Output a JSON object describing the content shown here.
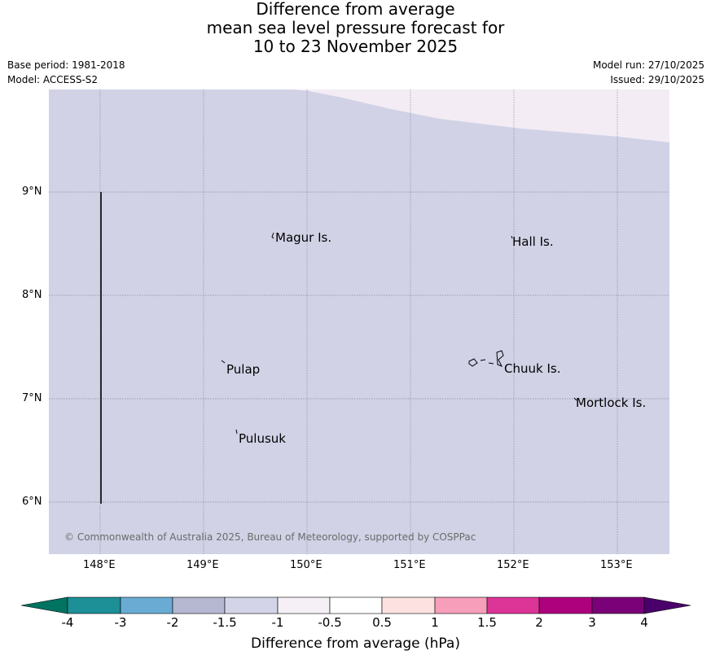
{
  "header": {
    "title_line1": "Difference from average",
    "title_line2": "mean sea level pressure forecast for",
    "title_line3": "10 to 23 November 2025",
    "base_period": "Base period: 1981-2018",
    "model": "Model: ACCESS-S2",
    "model_run": "Model run: 27/10/2025",
    "issued": "Issued: 29/10/2025"
  },
  "map": {
    "lat_labels": [
      "9°N",
      "8°N",
      "7°N",
      "6°N"
    ],
    "lon_labels": [
      "148°E",
      "149°E",
      "150°E",
      "151°E",
      "152°E",
      "153°E"
    ],
    "places": [
      "Magur Is.",
      "Hall Is.",
      "Pulap",
      "Chuuk Is.",
      "Mortlock Is.",
      "Pulusuk"
    ],
    "copyright": "© Commonwealth of Australia 2025, Bureau of Meteorology, supported by COSPPac",
    "colors": {
      "main_fill": "#d1d2e6",
      "upper_fill": "#f3ecf5",
      "grid": "#8a8a9a"
    }
  },
  "colorbar": {
    "title": "Difference from average (hPa)",
    "tick_labels": [
      "-4",
      "-3",
      "-2",
      "-1.5",
      "-1",
      "-0.5",
      "0.5",
      "1",
      "1.5",
      "2",
      "3",
      "4"
    ],
    "colors": [
      "#007361",
      "#1d8f97",
      "#69abd3",
      "#b5b8d0",
      "#d3d4e8",
      "#f5eff6",
      "#ffffff",
      "#fde1e1",
      "#f79eba",
      "#dd3497",
      "#ae017e",
      "#7a0177",
      "#4a006a"
    ]
  }
}
